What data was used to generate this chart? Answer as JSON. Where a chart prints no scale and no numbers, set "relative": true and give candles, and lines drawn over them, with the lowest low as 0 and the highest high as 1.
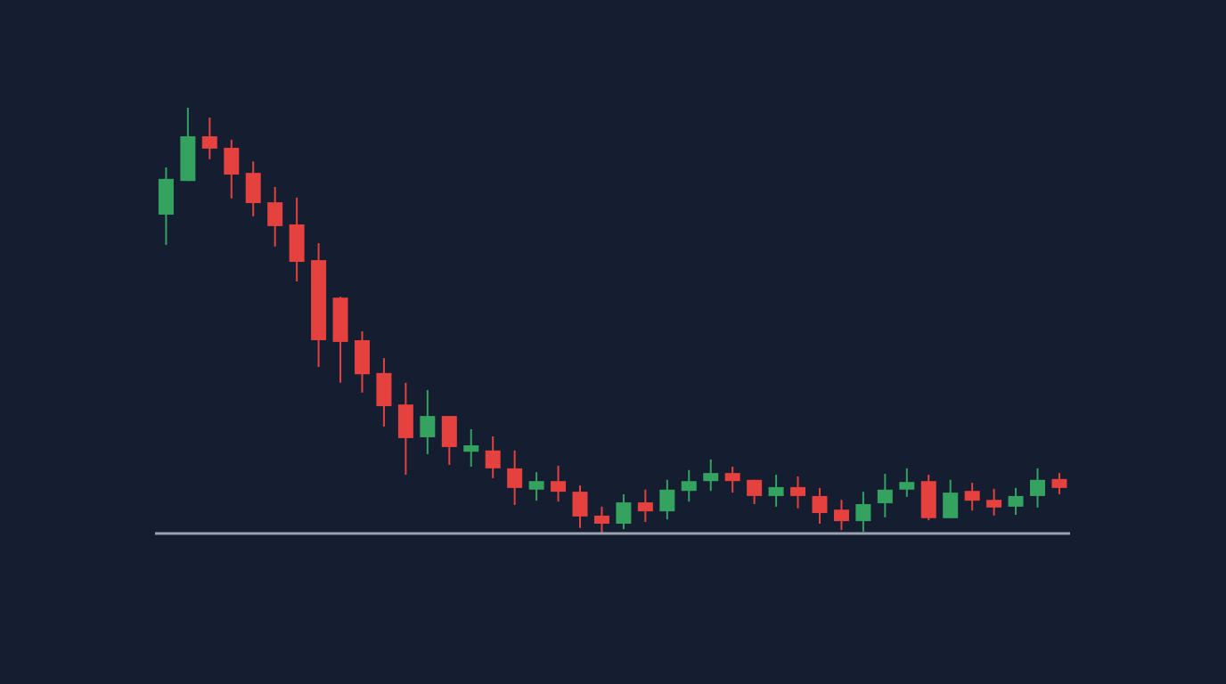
{
  "chart_data": {
    "type": "candlestick",
    "relative": true,
    "categories": [
      null,
      null,
      null,
      null,
      null,
      null,
      null,
      null,
      null,
      null,
      null,
      null,
      null,
      null,
      null,
      null,
      null,
      null,
      null,
      null,
      null,
      null,
      null,
      null,
      null,
      null,
      null,
      null,
      null,
      null,
      null,
      null,
      null,
      null,
      null,
      null,
      null,
      null,
      null,
      null,
      null,
      null
    ],
    "ohlc": [
      [
        0.749,
        0.86,
        0.678,
        0.833
      ],
      [
        0.828,
        1,
        0.828,
        0.933
      ],
      [
        0.933,
        0.977,
        0.879,
        0.904
      ],
      [
        0.906,
        0.925,
        0.787,
        0.843
      ],
      [
        0.847,
        0.874,
        0.745,
        0.776
      ],
      [
        0.778,
        0.814,
        0.674,
        0.722
      ],
      [
        0.726,
        0.789,
        0.592,
        0.638
      ],
      [
        0.642,
        0.682,
        0.391,
        0.454
      ],
      [
        0.554,
        0.556,
        0.354,
        0.45
      ],
      [
        0.454,
        0.475,
        0.331,
        0.374
      ],
      [
        0.377,
        0.412,
        0.251,
        0.299
      ],
      [
        0.303,
        0.354,
        0.138,
        0.224
      ],
      [
        0.226,
        0.337,
        0.186,
        0.276
      ],
      [
        0.276,
        0.276,
        0.161,
        0.203
      ],
      [
        0.192,
        0.245,
        0.157,
        0.207
      ],
      [
        0.195,
        0.228,
        0.13,
        0.153
      ],
      [
        0.153,
        0.195,
        0.067,
        0.107
      ],
      [
        0.103,
        0.144,
        0.077,
        0.123
      ],
      [
        0.123,
        0.159,
        0.075,
        0.098
      ],
      [
        0.098,
        0.113,
        0.013,
        0.04
      ],
      [
        0.042,
        0.063,
        0,
        0.023
      ],
      [
        0.023,
        0.092,
        0.01,
        0.073
      ],
      [
        0.073,
        0.103,
        0.027,
        0.052
      ],
      [
        0.052,
        0.126,
        0.033,
        0.103
      ],
      [
        0.1,
        0.149,
        0.075,
        0.123
      ],
      [
        0.123,
        0.174,
        0.1,
        0.142
      ],
      [
        0.142,
        0.157,
        0.096,
        0.123
      ],
      [
        0.126,
        0.126,
        0.069,
        0.088
      ],
      [
        0.088,
        0.138,
        0.063,
        0.109
      ],
      [
        0.109,
        0.134,
        0.059,
        0.088
      ],
      [
        0.088,
        0.107,
        0.023,
        0.048
      ],
      [
        0.056,
        0.079,
        0.008,
        0.029
      ],
      [
        0.029,
        0.098,
        0.004,
        0.069
      ],
      [
        0.071,
        0.14,
        0.038,
        0.103
      ],
      [
        0.103,
        0.153,
        0.086,
        0.121
      ],
      [
        0.123,
        0.138,
        0.031,
        0.036
      ],
      [
        0.036,
        0.126,
        0.036,
        0.096
      ],
      [
        0.1,
        0.119,
        0.054,
        0.077
      ],
      [
        0.079,
        0.105,
        0.042,
        0.061
      ],
      [
        0.063,
        0.107,
        0.044,
        0.088
      ],
      [
        0.088,
        0.153,
        0.061,
        0.126
      ],
      [
        0.128,
        0.142,
        0.092,
        0.107
      ]
    ],
    "colors": [
      "#34a35f",
      "#34a35f",
      "#e5413f",
      "#e5413f",
      "#e5413f",
      "#e5413f",
      "#e5413f",
      "#e5413f",
      "#e5413f",
      "#e5413f",
      "#e5413f",
      "#e5413f",
      "#34a35f",
      "#e5413f",
      "#34a35f",
      "#e5413f",
      "#e5413f",
      "#34a35f",
      "#e5413f",
      "#e5413f",
      "#e5413f",
      "#34a35f",
      "#e5413f",
      "#34a35f",
      "#34a35f",
      "#34a35f",
      "#e5413f",
      "#e5413f",
      "#34a35f",
      "#e5413f",
      "#e5413f",
      "#e5413f",
      "#34a35f",
      "#34a35f",
      "#34a35f",
      "#e5413f",
      "#34a35f",
      "#e5413f",
      "#e5413f",
      "#34a35f",
      "#34a35f",
      "#e5413f"
    ]
  }
}
